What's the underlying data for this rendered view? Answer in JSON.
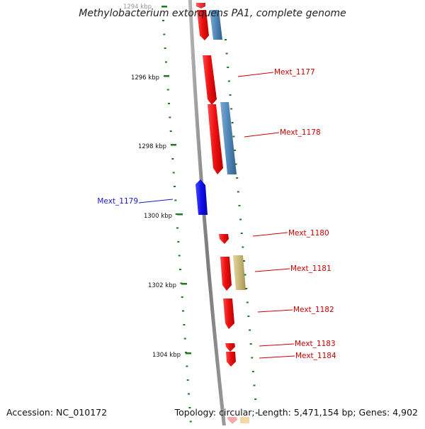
{
  "title": "Methylobacterium extorquens PA1, complete genome",
  "footer": {
    "accession": "Accession: NC_010172",
    "summary": "Topology: circular; Length: 5,471,154 bp; Genes: 4,902"
  },
  "scale": {
    "unit": "kbp",
    "labels": [
      "1294 kbp",
      "1296 kbp",
      "1298 kbp",
      "1300 kbp",
      "1302 kbp",
      "1304 kbp"
    ]
  },
  "colors": {
    "backbone": "#8a8a8a",
    "forward_gene": "#ee1111",
    "reverse_gene": "#1111ee",
    "feature_blue": "#4f86b8",
    "feature_khaki": "#c9b878",
    "tick": "#1f7a1f",
    "label_red": "#cc0000",
    "label_blue": "#1a1acc"
  },
  "genes": [
    {
      "name": "Mext_1177",
      "strand": "+",
      "label_color": "#cc0000"
    },
    {
      "name": "Mext_1178",
      "strand": "+",
      "label_color": "#cc0000"
    },
    {
      "name": "Mext_1179",
      "strand": "-",
      "label_color": "#1a1acc"
    },
    {
      "name": "Mext_1180",
      "strand": "+",
      "label_color": "#cc0000"
    },
    {
      "name": "Mext_1181",
      "strand": "+",
      "label_color": "#cc0000"
    },
    {
      "name": "Mext_1182",
      "strand": "+",
      "label_color": "#cc0000"
    },
    {
      "name": "Mext_1183",
      "strand": "+",
      "label_color": "#cc0000"
    },
    {
      "name": "Mext_1184",
      "strand": "+",
      "label_color": "#cc0000"
    }
  ]
}
